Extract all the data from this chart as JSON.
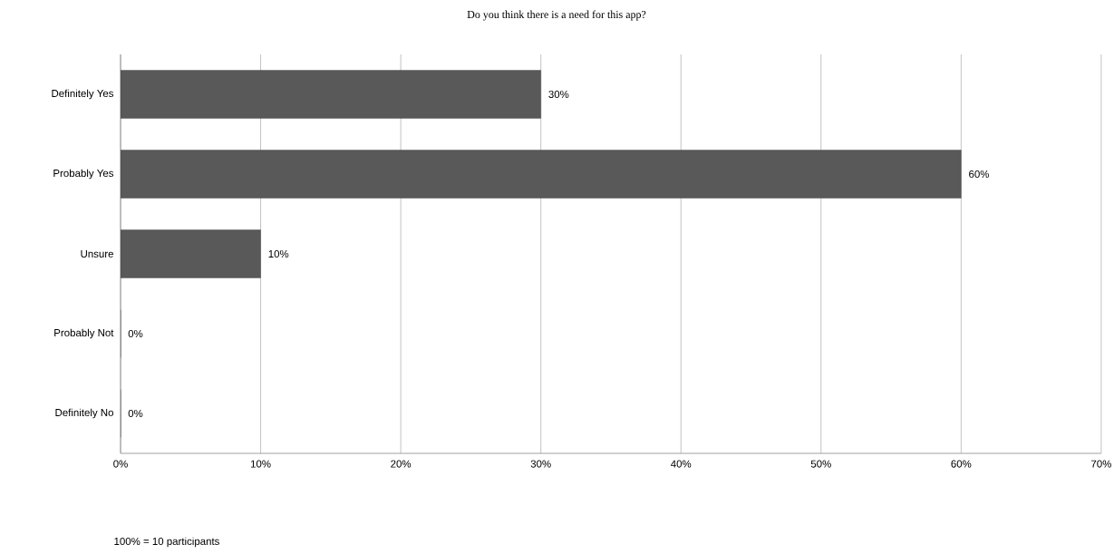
{
  "chart_data": {
    "type": "bar",
    "orientation": "horizontal",
    "title": "Do you think there is a need for this app?",
    "categories": [
      "Definitely Yes",
      "Probably Yes",
      "Unsure",
      "Probably Not",
      "Definitely No"
    ],
    "values": [
      30,
      60,
      10,
      0,
      0
    ],
    "value_labels": [
      "30%",
      "60%",
      "10%",
      "0%",
      "0%"
    ],
    "color": "#595959",
    "xlim": [
      0,
      70
    ],
    "xticks": [
      {
        "value": 0,
        "label": "0%"
      },
      {
        "value": 10,
        "label": "10%"
      },
      {
        "value": 20,
        "label": "20%"
      },
      {
        "value": 30,
        "label": "30%"
      },
      {
        "value": 40,
        "label": "40%"
      },
      {
        "value": 50,
        "label": "50%"
      },
      {
        "value": 60,
        "label": "60%"
      },
      {
        "value": 70,
        "label": "70%"
      }
    ],
    "grid": "x",
    "annotations": [
      "100% = 10 participants"
    ]
  }
}
